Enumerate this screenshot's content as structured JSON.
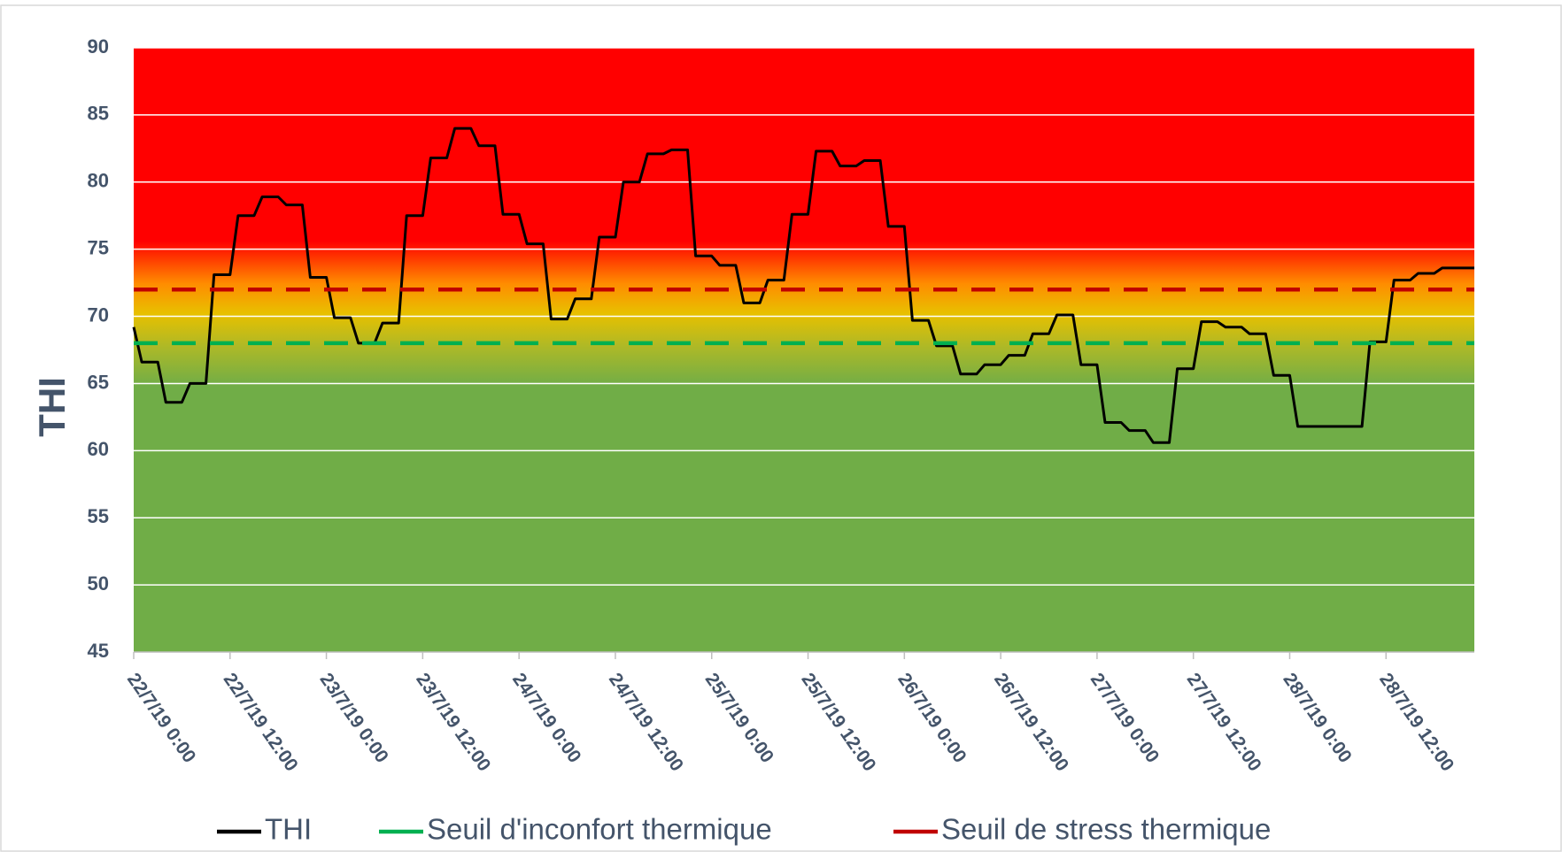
{
  "chart_data": {
    "type": "line",
    "ylabel": "THI",
    "ylim": [
      45,
      90
    ],
    "yticks": [
      45,
      50,
      55,
      60,
      65,
      70,
      75,
      80,
      85,
      90
    ],
    "xlim": [
      "22/7/19 0:00",
      "28/7/19 23:00"
    ],
    "xticks": [
      "22/7/19 0:00",
      "22/7/19 12:00",
      "23/7/19 0:00",
      "23/7/19 12:00",
      "24/7/19 0:00",
      "24/7/19 12:00",
      "25/7/19 0:00",
      "25/7/19 12:00",
      "26/7/19 0:00",
      "26/7/19 12:00",
      "27/7/19 0:00",
      "27/7/19 12:00",
      "28/7/19 0:00",
      "28/7/19 12:00"
    ],
    "grid": true,
    "legend": "bottom",
    "series": [
      {
        "name": "THI",
        "color": "#000000",
        "dashed": false,
        "x": [
          "22/7/19 0:00",
          "22/7/19 1:00",
          "22/7/19 3:00",
          "22/7/19 4:00",
          "22/7/19 6:00",
          "22/7/19 7:00",
          "22/7/19 9:00",
          "22/7/19 10:00",
          "22/7/19 12:00",
          "22/7/19 13:00",
          "22/7/19 15:00",
          "22/7/19 16:00",
          "22/7/19 18:00",
          "22/7/19 19:00",
          "22/7/19 21:00",
          "22/7/19 22:00",
          "23/7/19 0:00",
          "23/7/19 1:00",
          "23/7/19 3:00",
          "23/7/19 4:00",
          "23/7/19 6:00",
          "23/7/19 7:00",
          "23/7/19 9:00",
          "23/7/19 10:00",
          "23/7/19 12:00",
          "23/7/19 13:00",
          "23/7/19 15:00",
          "23/7/19 16:00",
          "23/7/19 18:00",
          "23/7/19 19:00",
          "23/7/19 21:00",
          "23/7/19 22:00",
          "24/7/19 0:00",
          "24/7/19 1:00",
          "24/7/19 3:00",
          "24/7/19 4:00",
          "24/7/19 6:00",
          "24/7/19 7:00",
          "24/7/19 9:00",
          "24/7/19 10:00",
          "24/7/19 12:00",
          "24/7/19 13:00",
          "24/7/19 15:00",
          "24/7/19 16:00",
          "24/7/19 18:00",
          "24/7/19 19:00",
          "24/7/19 21:00",
          "24/7/19 22:00",
          "25/7/19 0:00",
          "25/7/19 1:00",
          "25/7/19 3:00",
          "25/7/19 4:00",
          "25/7/19 6:00",
          "25/7/19 7:00",
          "25/7/19 9:00",
          "25/7/19 10:00",
          "25/7/19 12:00",
          "25/7/19 13:00",
          "25/7/19 15:00",
          "25/7/19 16:00",
          "25/7/19 18:00",
          "25/7/19 19:00",
          "25/7/19 21:00",
          "25/7/19 22:00",
          "26/7/19 0:00",
          "26/7/19 1:00",
          "26/7/19 3:00",
          "26/7/19 4:00",
          "26/7/19 6:00",
          "26/7/19 7:00",
          "26/7/19 9:00",
          "26/7/19 10:00",
          "26/7/19 12:00",
          "26/7/19 13:00",
          "26/7/19 15:00",
          "26/7/19 16:00",
          "26/7/19 18:00",
          "26/7/19 19:00",
          "26/7/19 21:00",
          "26/7/19 22:00",
          "27/7/19 0:00",
          "27/7/19 1:00",
          "27/7/19 3:00",
          "27/7/19 4:00",
          "27/7/19 6:00",
          "27/7/19 7:00",
          "27/7/19 9:00",
          "27/7/19 10:00",
          "27/7/19 12:00",
          "27/7/19 13:00",
          "27/7/19 15:00",
          "27/7/19 16:00",
          "27/7/19 18:00",
          "27/7/19 19:00",
          "27/7/19 21:00",
          "27/7/19 22:00",
          "28/7/19 0:00",
          "28/7/19 1:00",
          "28/7/19 9:00",
          "28/7/19 10:00",
          "28/7/19 12:00",
          "28/7/19 13:00",
          "28/7/19 15:00",
          "28/7/19 16:00",
          "28/7/19 18:00",
          "28/7/19 19:00",
          "28/7/19 23:00"
        ],
        "values": [
          69.2,
          66.6,
          66.6,
          63.6,
          63.6,
          65.0,
          65.0,
          73.1,
          73.1,
          77.5,
          77.5,
          78.9,
          78.9,
          78.3,
          78.3,
          72.9,
          72.9,
          69.9,
          69.9,
          68.0,
          68.0,
          69.5,
          69.5,
          77.5,
          77.5,
          81.8,
          81.8,
          84.0,
          84.0,
          82.7,
          82.7,
          77.6,
          77.6,
          75.4,
          75.4,
          69.8,
          69.8,
          71.3,
          71.3,
          75.9,
          75.9,
          80.0,
          80.0,
          82.1,
          82.1,
          82.4,
          82.4,
          74.5,
          74.5,
          73.8,
          73.8,
          71.0,
          71.0,
          72.7,
          72.7,
          77.6,
          77.6,
          82.3,
          82.3,
          81.2,
          81.2,
          81.6,
          81.6,
          76.7,
          76.7,
          69.7,
          69.7,
          67.8,
          67.8,
          65.7,
          65.7,
          66.4,
          66.4,
          67.1,
          67.1,
          68.7,
          68.7,
          70.1,
          70.1,
          66.4,
          66.4,
          62.1,
          62.1,
          61.5,
          61.5,
          60.6,
          60.6,
          66.1,
          66.1,
          69.6,
          69.6,
          69.2,
          69.2,
          68.7,
          68.7,
          65.6,
          65.6,
          61.8,
          61.8,
          68.1,
          68.1,
          72.7,
          72.7,
          73.2,
          73.2,
          73.6,
          73.6
        ]
      },
      {
        "name": "Seuil d'inconfort thermique",
        "color": "#00b050",
        "dashed": true,
        "x": [
          "22/7/19 0:00",
          "28/7/19 23:00"
        ],
        "values": [
          68,
          68
        ]
      },
      {
        "name": "Seuil de stress thermique",
        "color": "#c00000",
        "dashed": true,
        "x": [
          "22/7/19 0:00",
          "28/7/19 23:00"
        ],
        "values": [
          72,
          72
        ]
      }
    ]
  }
}
